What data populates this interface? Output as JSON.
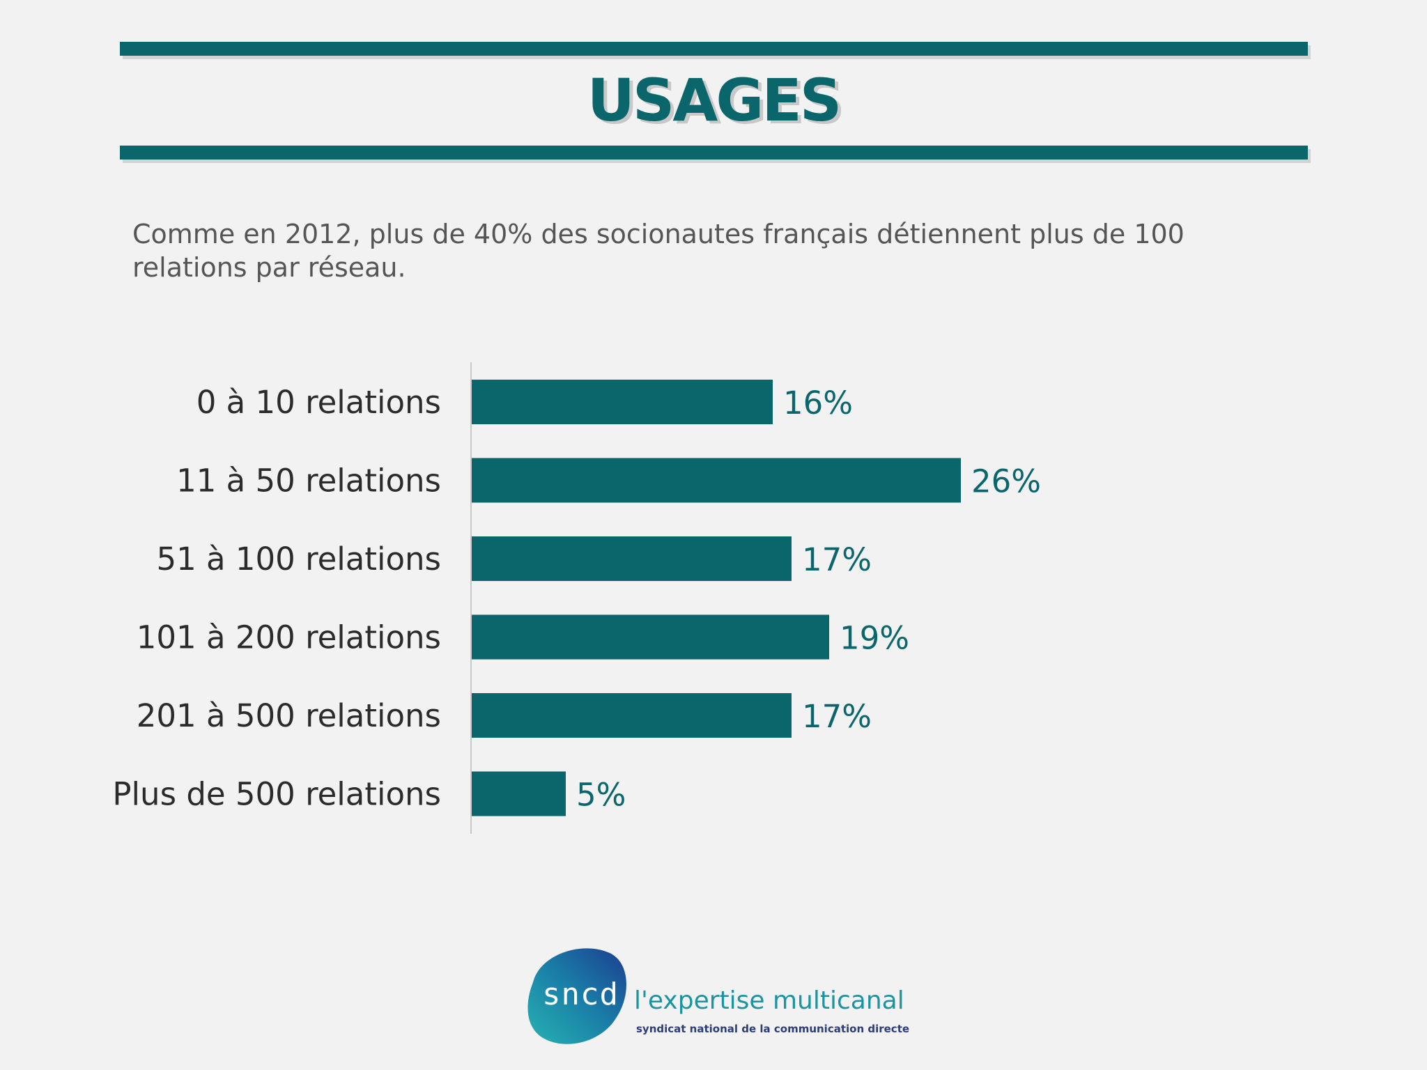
{
  "header": {
    "title": "USAGES",
    "subtitle": "Comme en 2012, plus de 40% des socionautes français détiennent plus de 100 relations par réseau."
  },
  "chart_data": {
    "type": "bar",
    "orientation": "horizontal",
    "categories": [
      "0 à 10 relations",
      "11 à 50 relations",
      "51 à 100 relations",
      "101 à 200 relations",
      "201 à 500 relations",
      "Plus de 500 relations"
    ],
    "values": [
      16,
      26,
      17,
      19,
      17,
      5
    ],
    "value_labels": [
      "16%",
      "26%",
      "17%",
      "19%",
      "17%",
      "5%"
    ],
    "unit": "%",
    "xlim": [
      0,
      30
    ],
    "bar_color": "#0a666b",
    "title": "",
    "xlabel": "",
    "ylabel": ""
  },
  "logo": {
    "word": "sncd",
    "tagline": "l'expertise multicanal",
    "subline": "syndicat national de la communication directe"
  },
  "colors": {
    "accent": "#0a666b",
    "background": "#f2f2f2",
    "text": "#2b2b2b"
  }
}
